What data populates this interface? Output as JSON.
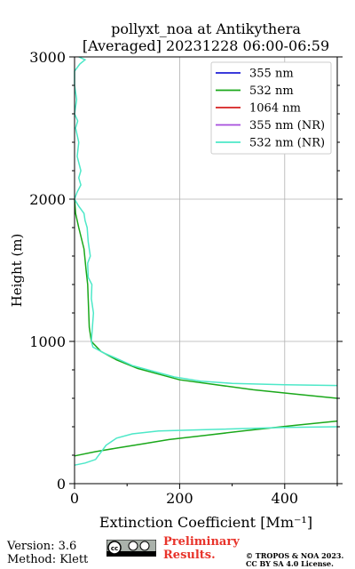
{
  "chart_data": {
    "type": "line",
    "title": "pollyxt_noa at Antikythera",
    "subtitle": "[Averaged] 20231228 06:00-06:59",
    "xlabel": "Extinction Coefficient [Mm⁻¹]",
    "ylabel": "Height (m)",
    "xlim": [
      0,
      500
    ],
    "ylim": [
      0,
      3000
    ],
    "xticks": [
      0,
      200,
      400
    ],
    "yticks": [
      0,
      1000,
      2000,
      3000
    ],
    "grid": true,
    "legend_position": "top-right",
    "series": [
      {
        "name": "355 nm",
        "color": "#1f1fd6",
        "points": []
      },
      {
        "name": "532 nm",
        "color": "#1aa81a",
        "points": [
          [
            500,
            440
          ],
          [
            420,
            410
          ],
          [
            320,
            370
          ],
          [
            250,
            340
          ],
          [
            180,
            310
          ],
          [
            130,
            280
          ],
          [
            80,
            250
          ],
          [
            40,
            225
          ],
          [
            0,
            195
          ],
          [
            0,
            195
          ]
        ],
        "points_upper": [
          [
            500,
            600
          ],
          [
            420,
            630
          ],
          [
            340,
            660
          ],
          [
            260,
            700
          ],
          [
            200,
            730
          ],
          [
            160,
            770
          ],
          [
            120,
            810
          ],
          [
            80,
            870
          ],
          [
            50,
            930
          ],
          [
            32,
            1000
          ],
          [
            28,
            1100
          ],
          [
            26,
            1300
          ],
          [
            25,
            1400
          ],
          [
            22,
            1500
          ],
          [
            18,
            1650
          ],
          [
            8,
            1800
          ],
          [
            2,
            1900
          ],
          [
            0,
            2000
          ]
        ]
      },
      {
        "name": "1064 nm",
        "color": "#d61f1f",
        "points": []
      },
      {
        "name": "355 nm (NR)",
        "color": "#a64ddc",
        "points": []
      },
      {
        "name": "532 nm (NR)",
        "color": "#4de8c8",
        "points": [
          [
            0,
            130
          ],
          [
            20,
            145
          ],
          [
            40,
            170
          ],
          [
            50,
            220
          ],
          [
            60,
            270
          ],
          [
            80,
            320
          ],
          [
            110,
            350
          ],
          [
            160,
            370
          ],
          [
            250,
            380
          ],
          [
            400,
            395
          ],
          [
            500,
            400
          ]
        ],
        "points_upper": [
          [
            500,
            690
          ],
          [
            400,
            695
          ],
          [
            300,
            705
          ],
          [
            240,
            720
          ],
          [
            190,
            750
          ],
          [
            150,
            790
          ],
          [
            110,
            830
          ],
          [
            80,
            880
          ],
          [
            55,
            920
          ],
          [
            35,
            960
          ],
          [
            32,
            1000
          ],
          [
            34,
            1100
          ],
          [
            36,
            1200
          ],
          [
            32,
            1300
          ],
          [
            33,
            1400
          ],
          [
            26,
            1450
          ],
          [
            25,
            1550
          ],
          [
            30,
            1600
          ],
          [
            26,
            1700
          ],
          [
            24,
            1800
          ],
          [
            20,
            1850
          ],
          [
            18,
            1900
          ],
          [
            8,
            1950
          ],
          [
            0,
            2000
          ],
          [
            5,
            2050
          ],
          [
            12,
            2100
          ],
          [
            8,
            2150
          ],
          [
            12,
            2200
          ],
          [
            5,
            2300
          ],
          [
            8,
            2400
          ],
          [
            2,
            2500
          ],
          [
            6,
            2550
          ],
          [
            0,
            2600
          ],
          [
            4,
            2700
          ],
          [
            2,
            2750
          ],
          [
            0,
            2800
          ],
          [
            0,
            2900
          ],
          [
            10,
            2950
          ],
          [
            20,
            2980
          ],
          [
            8,
            3000
          ]
        ]
      }
    ]
  },
  "footer": {
    "version": "Version: 3.6",
    "method": "Method: Klett",
    "preliminary_line1": "Preliminary",
    "preliminary_line2": "Results.",
    "copyright_line1": "© TROPOS & NOA 2023.",
    "copyright_line2": "CC BY SA 4.0 License."
  }
}
